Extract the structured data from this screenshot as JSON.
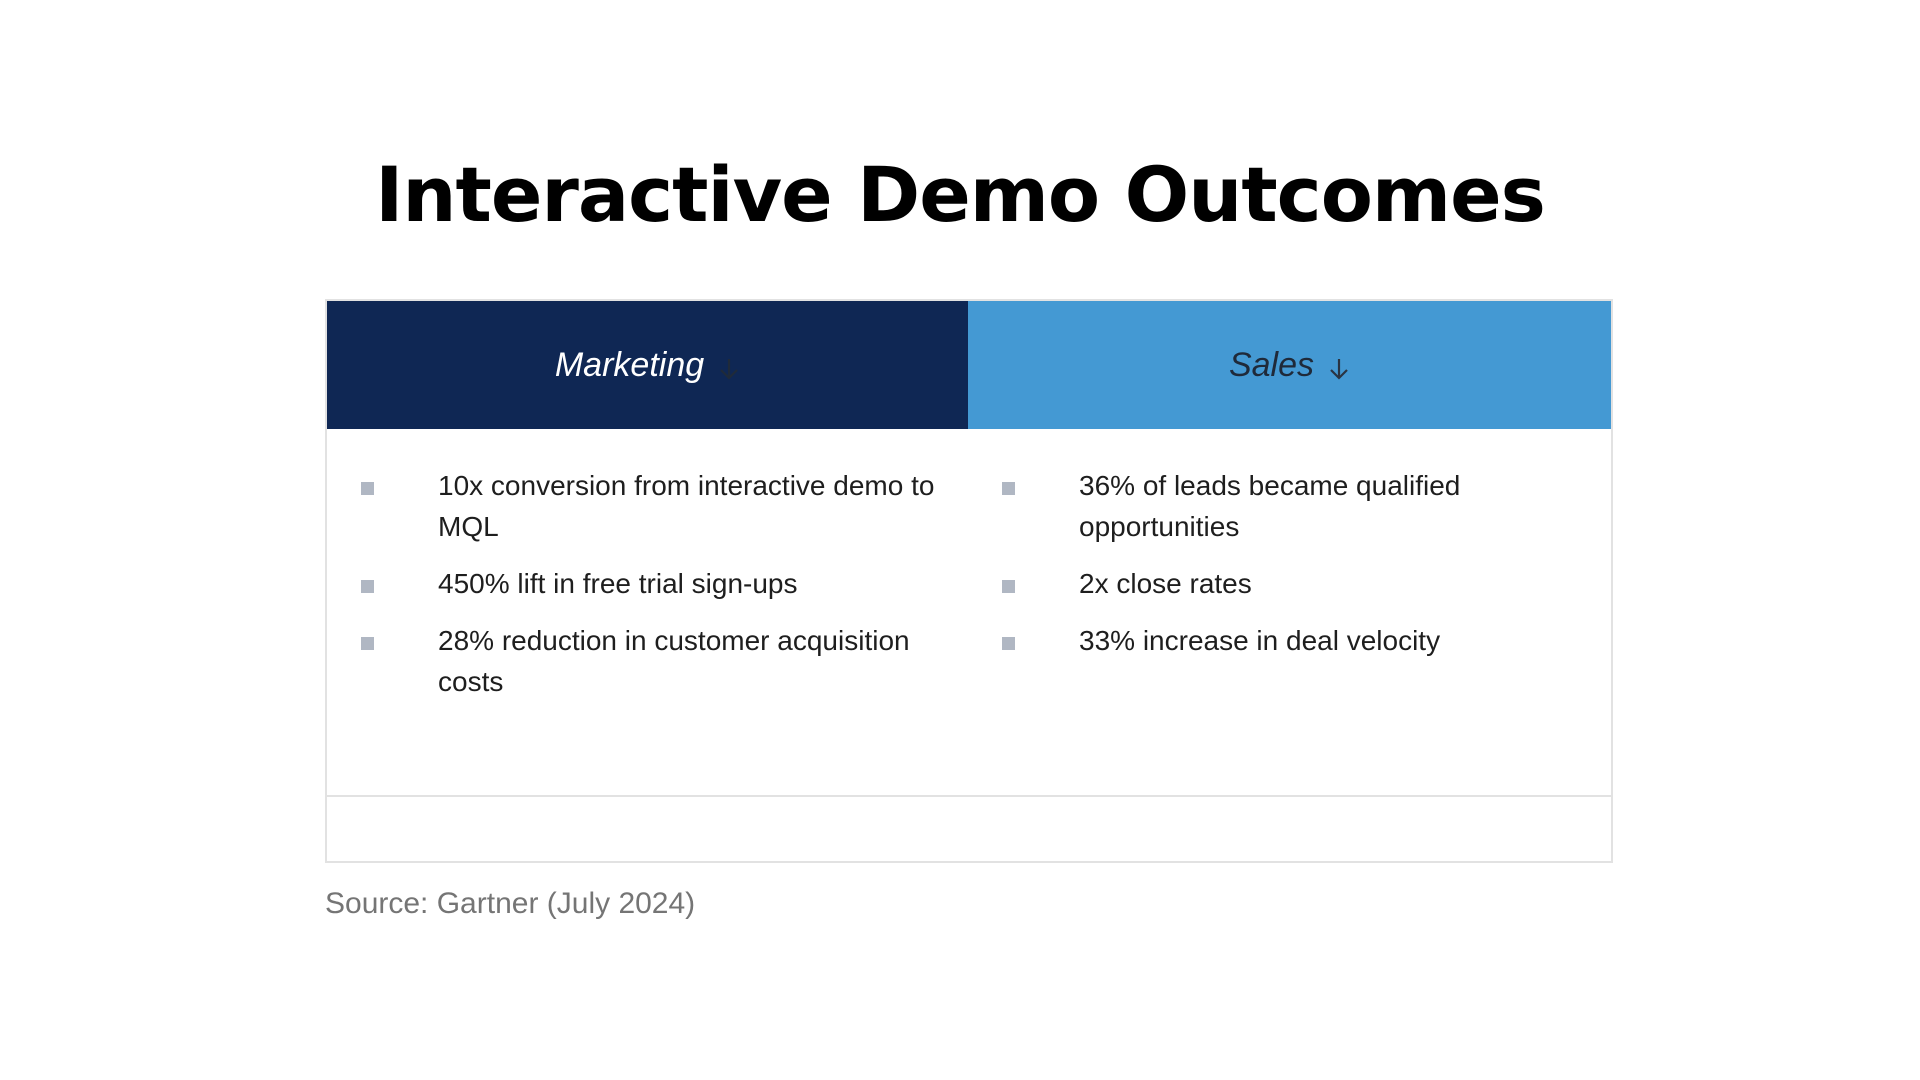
{
  "title": "Interactive Demo Outcomes",
  "colors": {
    "marketing_header": "#0f2754",
    "sales_header": "#4499d3",
    "marketing_arrow": "#1f2a3a",
    "sales_arrow": "#2a3442",
    "bullet": "#b0b7c3"
  },
  "table": {
    "columns": [
      {
        "header": "Marketing",
        "icon": "arrow-down-icon",
        "items": [
          "10x conversion from interactive demo to MQL",
          "450% lift in free trial sign-ups",
          "28% reduction in customer acquisition costs"
        ]
      },
      {
        "header": "Sales",
        "icon": "arrow-down-icon",
        "items": [
          "36% of leads became qualified opportunities",
          "2x close rates",
          "33% increase in deal velocity"
        ]
      }
    ]
  },
  "source": "Source: Gartner (July 2024)"
}
